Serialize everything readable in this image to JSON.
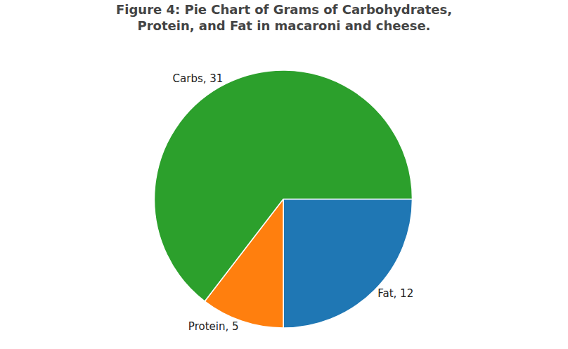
{
  "chart_data": {
    "type": "pie",
    "title": "Figure 4: Pie Chart of Grams of Carbohydrates,\nProtein, and Fat in macaroni and cheese.",
    "categories": [
      "Fat",
      "Protein",
      "Carbs"
    ],
    "values": [
      12,
      5,
      31
    ],
    "value_labels": [
      "Fat, 12",
      "Protein, 5",
      "Carbs, 31"
    ],
    "data_labels": true
  }
}
